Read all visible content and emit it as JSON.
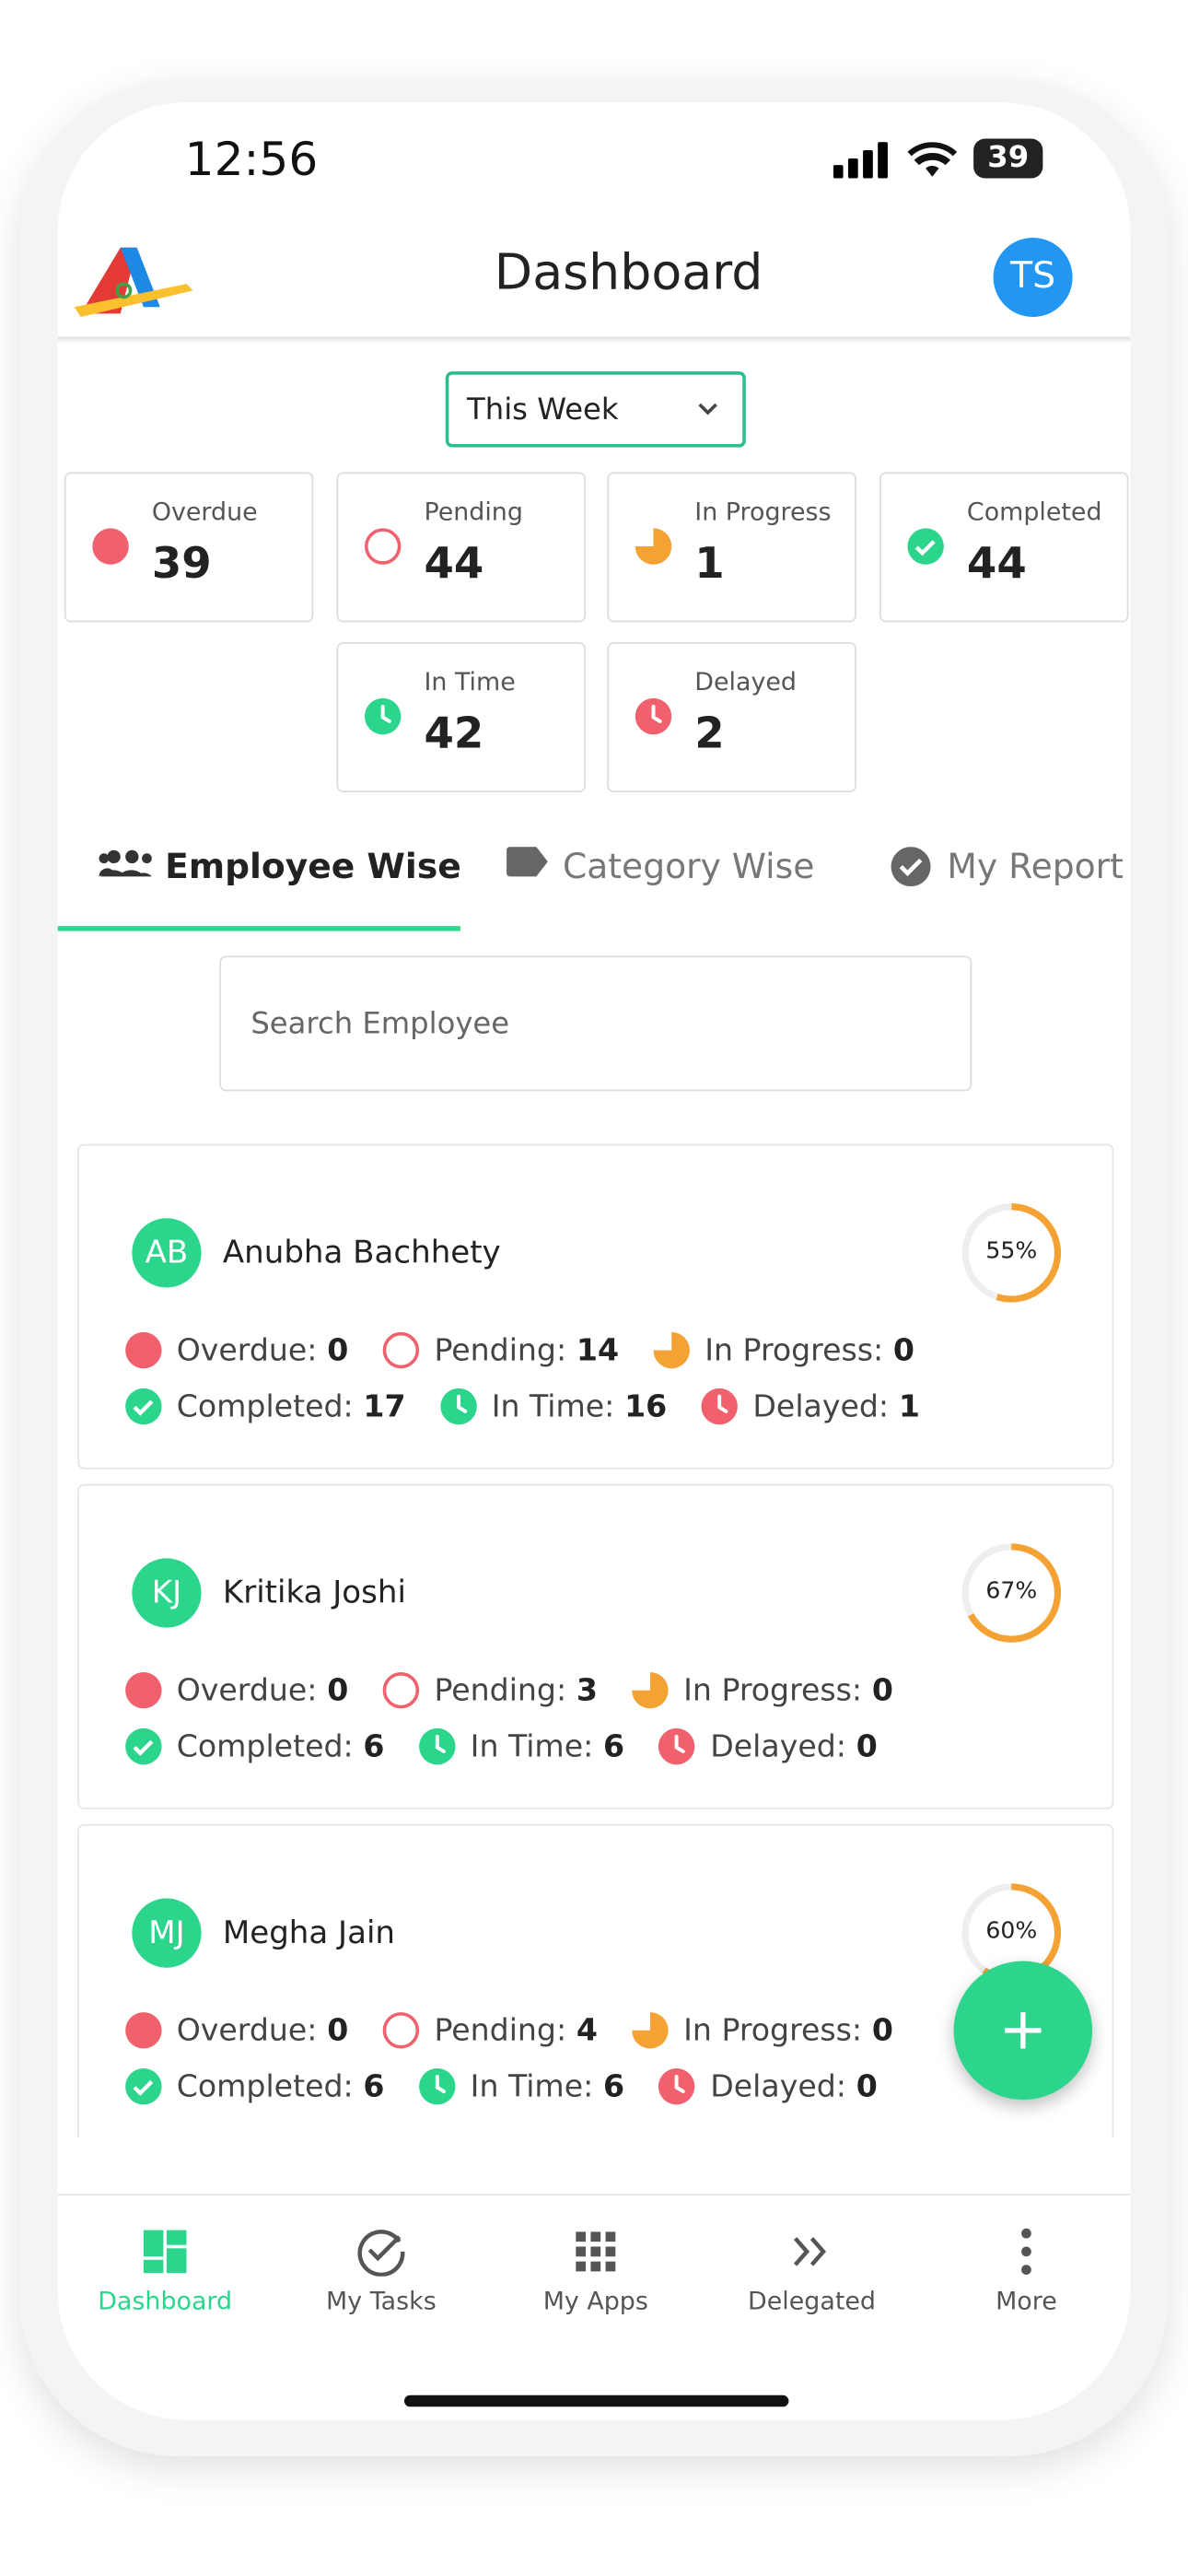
{
  "status_bar": {
    "time": "12:56",
    "battery": "39"
  },
  "header": {
    "title": "Dashboard",
    "avatar": "TS"
  },
  "filter": "This Week",
  "summary": [
    {
      "label": "Overdue",
      "value": 39
    },
    {
      "label": "Pending",
      "value": 44
    },
    {
      "label": "In Progress",
      "value": 1
    },
    {
      "label": "Completed",
      "value": 44
    },
    {
      "label": "In Time",
      "value": 42
    },
    {
      "label": "Delayed",
      "value": 2
    }
  ],
  "tabs": [
    "Employee Wise",
    "Category Wise",
    "My Report"
  ],
  "search_placeholder": "Search Employee",
  "employees": [
    {
      "initials": "AB",
      "name": "Anubha Bachhety",
      "progress": 55,
      "progress_label": "55%",
      "stats": [
        {
          "label": "Overdue:",
          "value": 0
        },
        {
          "label": "Pending:",
          "value": 14
        },
        {
          "label": "In Progress:",
          "value": 0
        },
        {
          "label": "Completed:",
          "value": 17
        },
        {
          "label": "In Time:",
          "value": 16
        },
        {
          "label": "Delayed:",
          "value": 1
        }
      ]
    },
    {
      "initials": "KJ",
      "name": "Kritika Joshi",
      "progress": 67,
      "progress_label": "67%",
      "stats": [
        {
          "label": "Overdue:",
          "value": 0
        },
        {
          "label": "Pending:",
          "value": 3
        },
        {
          "label": "In Progress:",
          "value": 0
        },
        {
          "label": "Completed:",
          "value": 6
        },
        {
          "label": "In Time:",
          "value": 6
        },
        {
          "label": "Delayed:",
          "value": 0
        }
      ]
    },
    {
      "initials": "MJ",
      "name": "Megha Jain",
      "progress": 60,
      "progress_label": "60%",
      "stats": [
        {
          "label": "Overdue:",
          "value": 0
        },
        {
          "label": "Pending:",
          "value": 4
        },
        {
          "label": "In Progress:",
          "value": 0
        },
        {
          "label": "Completed:",
          "value": 6
        },
        {
          "label": "In Time:",
          "value": 6
        },
        {
          "label": "Delayed:",
          "value": 0
        }
      ]
    }
  ],
  "nav": [
    "Dashboard",
    "My Tasks",
    "My Apps",
    "Delegated",
    "More"
  ]
}
